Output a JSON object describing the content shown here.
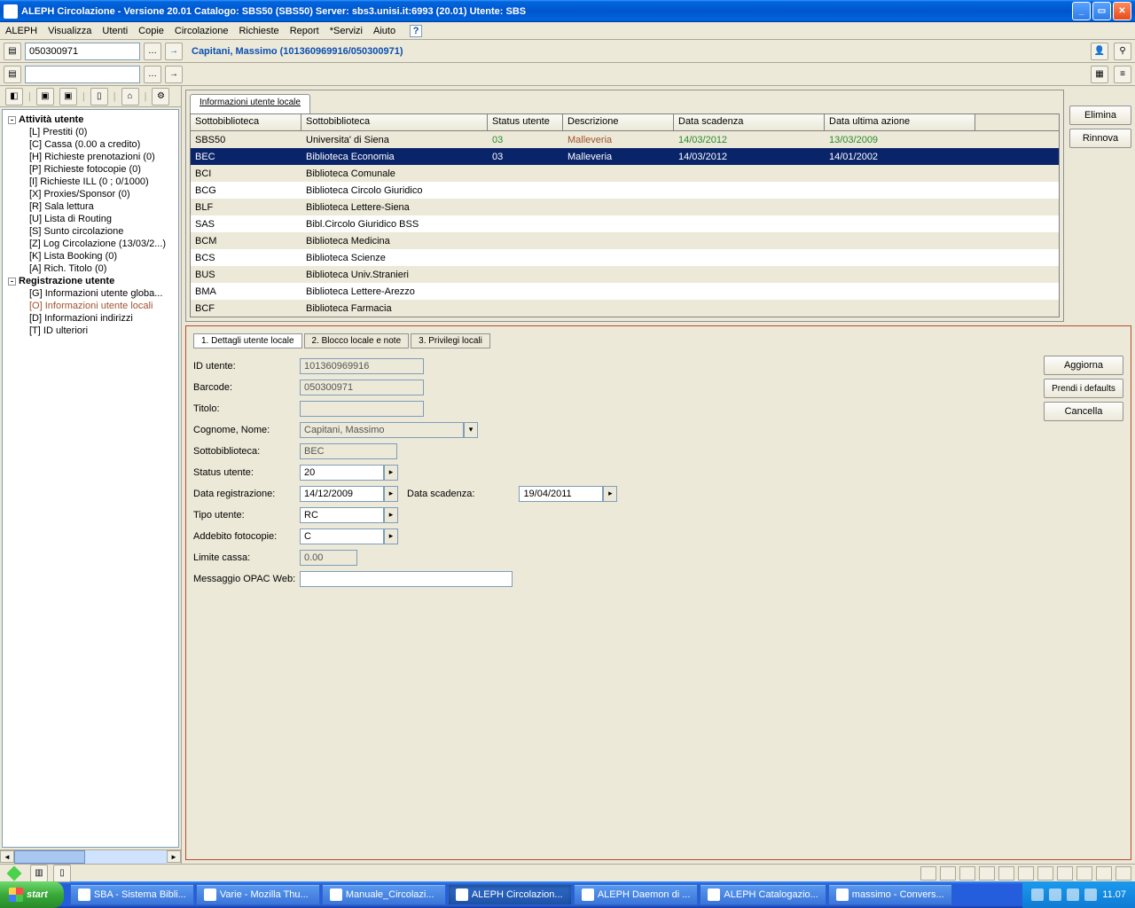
{
  "window": {
    "title": "ALEPH Circolazione - Versione 20.01  Catalogo:  SBS50 (SBS50)  Server:  sbs3.unisi.it:6993 (20.01)  Utente:  SBS"
  },
  "menu": [
    "ALEPH",
    "Visualizza",
    "Utenti",
    "Copie",
    "Circolazione",
    "Richieste",
    "Report",
    "*Servizi",
    "Aiuto"
  ],
  "toolbar": {
    "search_value": "050300971",
    "patron_label": "Capitani, Massimo (101360969916/050300971)"
  },
  "tree": {
    "root1": "Attività utente",
    "items1": [
      "[L] Prestiti (0)",
      "[C] Cassa (0.00 a credito)",
      "[H] Richieste prenotazioni (0)",
      "[P] Richieste fotocopie (0)",
      "[I] Richieste ILL (0 ; 0/1000)",
      "[X] Proxies/Sponsor (0)",
      "[R] Sala lettura",
      "[U] Lista di Routing",
      "[S] Sunto circolazione",
      "[Z] Log Circolazione (13/03/2...)",
      "[K] Lista Booking (0)",
      "[A] Rich. Titolo (0)"
    ],
    "root2": "Registrazione utente",
    "items2": [
      "[G] Informazioni utente globa...",
      "[O] Informazioni utente locali",
      "[D] Informazioni indirizzi",
      "[T] ID ulteriori"
    ]
  },
  "grid": {
    "tab": "Informazioni utente locale",
    "headers": [
      "Sottobiblioteca",
      "Sottobiblioteca",
      "Status utente",
      "Descrizione",
      "Data scadenza",
      "Data ultima azione"
    ],
    "rows": [
      {
        "c": [
          "SBS50",
          "Universita' di Siena",
          "03",
          "Malleveria",
          "14/03/2012",
          "13/03/2009"
        ],
        "flags": {
          "2": "green",
          "3": "brown",
          "4": "green",
          "5": "green"
        }
      },
      {
        "c": [
          "BEC",
          "Biblioteca Economia",
          "03",
          "Malleveria",
          "14/03/2012",
          "14/01/2002"
        ],
        "sel": true
      },
      {
        "c": [
          "BCI",
          "Biblioteca Comunale",
          "",
          "",
          "",
          ""
        ]
      },
      {
        "c": [
          "BCG",
          "Biblioteca Circolo Giuridico",
          "",
          "",
          "",
          ""
        ]
      },
      {
        "c": [
          "BLF",
          "Biblioteca Lettere-Siena",
          "",
          "",
          "",
          ""
        ]
      },
      {
        "c": [
          "SAS",
          "Bibl.Circolo Giuridico BSS",
          "",
          "",
          "",
          ""
        ]
      },
      {
        "c": [
          "BCM",
          "Biblioteca Medicina",
          "",
          "",
          "",
          ""
        ]
      },
      {
        "c": [
          "BCS",
          "Biblioteca Scienze",
          "",
          "",
          "",
          ""
        ]
      },
      {
        "c": [
          "BUS",
          "Biblioteca Univ.Stranieri",
          "",
          "",
          "",
          ""
        ]
      },
      {
        "c": [
          "BMA",
          "Biblioteca Lettere-Arezzo",
          "",
          "",
          "",
          ""
        ]
      },
      {
        "c": [
          "BCF",
          "Biblioteca Farmacia",
          "",
          "",
          "",
          ""
        ]
      }
    ],
    "btn_elimina": "Elimina",
    "btn_rinnova": "Rinnova"
  },
  "detail": {
    "tabs": [
      "1. Dettagli utente locale",
      "2. Blocco locale e note",
      "3. Privilegi locali"
    ],
    "labels": {
      "id": "ID utente:",
      "barcode": "Barcode:",
      "titolo": "Titolo:",
      "cognome": "Cognome, Nome:",
      "sotto": "Sottobiblioteca:",
      "status": "Status utente:",
      "datareg": "Data registrazione:",
      "datascad": "Data scadenza:",
      "tipo": "Tipo utente:",
      "addebito": "Addebito fotocopie:",
      "limite": "Limite cassa:",
      "msg": "Messaggio OPAC Web:"
    },
    "values": {
      "id": "101360969916",
      "barcode": "050300971",
      "titolo": "",
      "cognome": "Capitani, Massimo",
      "sotto": "BEC",
      "status": "20",
      "datareg": "14/12/2009",
      "datascad": "19/04/2011",
      "tipo": "RC",
      "addebito": "C",
      "limite": "0.00",
      "msg": ""
    },
    "btn_aggiorna": "Aggiorna",
    "btn_defaults": "Prendi i defaults",
    "btn_cancella": "Cancella"
  },
  "taskbar": {
    "start": "start",
    "items": [
      "SBA - Sistema Bibli...",
      "Varie - Mozilla Thu...",
      "Manuale_Circolazi...",
      "ALEPH Circolazion...",
      "ALEPH Daemon di ...",
      "ALEPH Catalogazio...",
      "massimo - Convers..."
    ],
    "active_index": 3,
    "time": "11.07"
  }
}
